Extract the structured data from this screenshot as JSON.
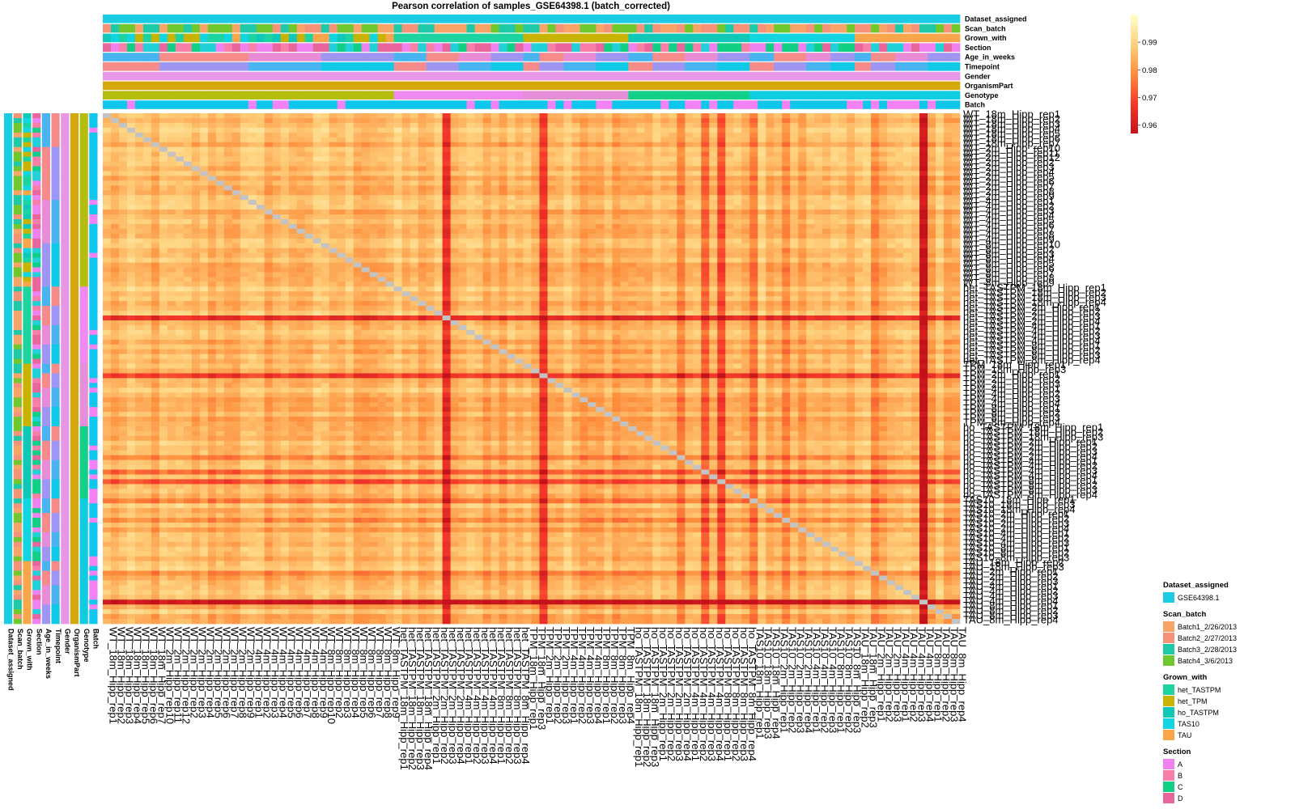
{
  "chart_data": {
    "type": "heatmap",
    "title": "Pearson correlation of samples_GSE64398.1 (batch_corrected)",
    "colorbar": {
      "ticks": [
        0.96,
        0.97,
        0.98,
        0.99
      ],
      "range": [
        0.957,
        1.0
      ],
      "colors": [
        "#c4121b",
        "#f5382a",
        "#fd8d3c",
        "#fed27e",
        "#ffffcc"
      ]
    },
    "annotation_tracks": [
      "Dataset_assigned",
      "Scan_batch",
      "Grown_with",
      "Section",
      "Age_in_weeks",
      "Timepoint",
      "Gender",
      "OrganismPart",
      "Genotype",
      "Batch"
    ],
    "samples": [
      "WT_18m_Hipp_rep1",
      "WT_18m_Hipp_rep2",
      "WT_18m_Hipp_rep3",
      "WT_18m_Hipp_rep4",
      "WT_18m_Hipp_rep5",
      "WT_18m_Hipp_rep6",
      "WT_18m_Hipp_rep7",
      "WT_2m_Hipp_rep10",
      "WT_2m_Hipp_rep11",
      "WT_2m_Hipp_rep12",
      "WT_2m_Hipp_rep2",
      "WT_2m_Hipp_rep3",
      "WT_2m_Hipp_rep4",
      "WT_2m_Hipp_rep5",
      "WT_2m_Hipp_rep6",
      "WT_2m_Hipp_rep7",
      "WT_2m_Hipp_rep8",
      "WT_2m_Hipp_rep9",
      "WT_4m_Hipp_rep1",
      "WT_4m_Hipp_rep2",
      "WT_4m_Hipp_rep3",
      "WT_4m_Hipp_rep4",
      "WT_4m_Hipp_rep5",
      "WT_4m_Hipp_rep6",
      "WT_4m_Hipp_rep7",
      "WT_4m_Hipp_rep8",
      "WT_4m_Hipp_rep9",
      "WT_8m_Hipp_rep10",
      "WT_8m_Hipp_rep2",
      "WT_8m_Hipp_rep3",
      "WT_8m_Hipp_rep4",
      "WT_8m_Hipp_rep5",
      "WT_8m_Hipp_rep6",
      "WT_8m_Hipp_rep7",
      "WT_8m_Hipp_rep8",
      "WT_8m_Hipp_rep9",
      "het_TASTPM_18m_Hipp_rep1",
      "het_TASTPM_18m_Hipp_rep2",
      "het_TASTPM_18m_Hipp_rep3",
      "het_TASTPM_18m_Hipp_rep4",
      "het_TASTPM_2m_Hipp_rep1",
      "het_TASTPM_2m_Hipp_rep2",
      "het_TASTPM_2m_Hipp_rep3",
      "het_TASTPM_2m_Hipp_rep4",
      "het_TASTPM_4m_Hipp_rep1",
      "het_TASTPM_4m_Hipp_rep2",
      "het_TASTPM_4m_Hipp_rep3",
      "het_TASTPM_4m_Hipp_rep4",
      "het_TASTPM_8m_Hipp_rep1",
      "het_TASTPM_8m_Hipp_rep2",
      "het_TASTPM_8m_Hipp_rep3",
      "het_TASTPM_8m_Hipp_rep4",
      "TPM_18m_Hipp_rep1",
      "TPM_18m_Hipp_rep3",
      "TPM_2m_Hipp_rep1",
      "TPM_2m_Hipp_rep2",
      "TPM_2m_Hipp_rep3",
      "TPM_4m_Hipp_rep1",
      "TPM_4m_Hipp_rep2",
      "TPM_4m_Hipp_rep3",
      "TPM_4m_Hipp_rep4",
      "TPM_8m_Hipp_rep1",
      "TPM_8m_Hipp_rep2",
      "TPM_8m_Hipp_rep3",
      "TPM_8m_Hipp_rep4",
      "ho_TASTPM_18m_Hipp_rep1",
      "ho_TASTPM_18m_Hipp_rep2",
      "ho_TASTPM_18m_Hipp_rep3",
      "ho_TASTPM_2m_Hipp_rep1",
      "ho_TASTPM_2m_Hipp_rep2",
      "ho_TASTPM_2m_Hipp_rep3",
      "ho_TASTPM_2m_Hipp_rep4",
      "ho_TASTPM_4m_Hipp_rep1",
      "ho_TASTPM_4m_Hipp_rep2",
      "ho_TASTPM_4m_Hipp_rep3",
      "ho_TASTPM_4m_Hipp_rep4",
      "ho_TASTPM_8m_Hipp_rep1",
      "ho_TASTPM_8m_Hipp_rep2",
      "ho_TASTPM_8m_Hipp_rep3",
      "ho_TASTPM_8m_Hipp_rep4",
      "TAS10_18m_Hipp_rep1",
      "TAS10_18m_Hipp_rep3",
      "TAS10_18m_Hipp_rep4",
      "TAS10_2m_Hipp_rep1",
      "TAS10_2m_Hipp_rep2",
      "TAS10_2m_Hipp_rep3",
      "TAS10_2m_Hipp_rep4",
      "TAS10_4m_Hipp_rep1",
      "TAS10_4m_Hipp_rep2",
      "TAS10_4m_Hipp_rep3",
      "TAS10_8m_Hipp_rep1",
      "TAS10_8m_Hipp_rep2",
      "TAS10_8m_Hipp_rep3",
      "TAU_18m_Hipp_rep2",
      "TAU_18m_Hipp_rep3",
      "TAU_2m_Hipp_rep1",
      "TAU_2m_Hipp_rep2",
      "TAU_2m_Hipp_rep3",
      "TAU_4m_Hipp_rep1",
      "TAU_4m_Hipp_rep2",
      "TAU_4m_Hipp_rep3",
      "TAU_4m_Hipp_rep4",
      "TAU_8m_Hipp_rep1",
      "TAU_8m_Hipp_rep2",
      "TAU_8m_Hipp_rep3",
      "TAU_8m_Hipp_rep4"
    ],
    "diagonal_value": 1.0,
    "baseline_correlation": 0.985,
    "low_correlation_samples": [
      {
        "sample": "het_TASTPM_2m_Hipp_rep3",
        "r": 0.965
      },
      {
        "sample": "TPM_2m_Hipp_rep1",
        "r": 0.967
      },
      {
        "sample": "TAU_4m_Hipp_rep4",
        "r": 0.958
      },
      {
        "sample": "ho_TASTPM_8m_Hipp_rep1",
        "r": 0.97
      },
      {
        "sample": "ho_TASTPM_4m_Hipp_rep3",
        "r": 0.973
      },
      {
        "sample": "TAS10_18m_Hipp_rep1",
        "r": 0.976
      },
      {
        "sample": "ho_TASTPM_2m_Hipp_rep4",
        "r": 0.977
      },
      {
        "sample": "TAS10_2m_Hipp_rep2",
        "r": 0.978
      },
      {
        "sample": "TAU_2m_Hipp_rep1",
        "r": 0.978
      }
    ],
    "grid": false
  },
  "legends": [
    {
      "title": "Dataset_assigned",
      "items": [
        {
          "label": "GSE64398.1",
          "color": "#1bcce4"
        }
      ]
    },
    {
      "title": "Scan_batch",
      "items": [
        {
          "label": "Batch1_2/26/2013",
          "color": "#f8a468"
        },
        {
          "label": "Batch2_2/27/2013",
          "color": "#f59278"
        },
        {
          "label": "Batch3_2/28/2013",
          "color": "#1ec9a8"
        },
        {
          "label": "Batch4_3/6/2013",
          "color": "#70c82e"
        }
      ]
    },
    {
      "title": "Grown_with",
      "items": [
        {
          "label": "het_TASTPM",
          "color": "#1dd3a0"
        },
        {
          "label": "het_TPM",
          "color": "#c8b300"
        },
        {
          "label": "ho_TASTPM",
          "color": "#10c8b8"
        },
        {
          "label": "TAS10",
          "color": "#11d6e2"
        },
        {
          "label": "TAU",
          "color": "#f9a54a"
        }
      ]
    },
    {
      "title": "Section",
      "items": [
        {
          "label": "A",
          "color": "#ee82ee"
        },
        {
          "label": "B",
          "color": "#f87fa8"
        },
        {
          "label": "C",
          "color": "#12cf86"
        },
        {
          "label": "D",
          "color": "#e8669c"
        }
      ]
    }
  ],
  "colors": {
    "dataset": "#1bcce4",
    "gender": "#e797e6",
    "organism": "#d4a80b",
    "geno_wt": "#b5bd0e",
    "geno_het": "#f08af0",
    "geno_tpm": "#e58fd9",
    "geno_ho": "#12d088",
    "geno_tau": "#0ecde2",
    "section": [
      "#ee82ee",
      "#f87fa8",
      "#12cf86",
      "#e8669c",
      "#22d0d8"
    ],
    "age": [
      "#f58b8b",
      "#e98cd7",
      "#9f96f3",
      "#4ab4f0",
      "#0fc9e6"
    ],
    "batch": [
      "#0fc7ec",
      "#f383f4"
    ],
    "diagonal": "#c3c3c3"
  }
}
